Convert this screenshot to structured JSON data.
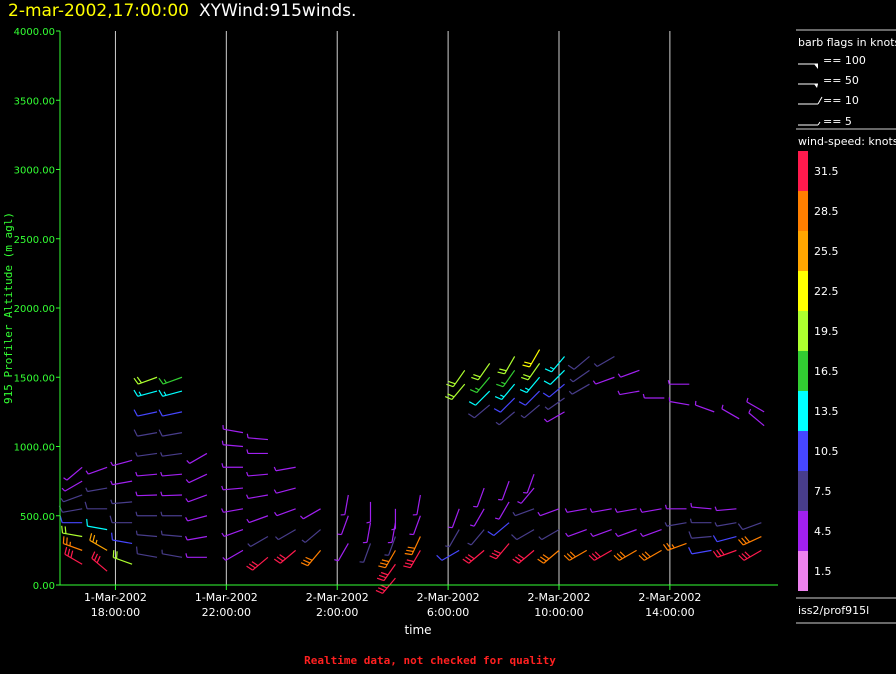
{
  "header": {
    "timestamp": "2-mar-2002,17:00:00",
    "description": "XYWind:915winds."
  },
  "footer": {
    "note": "Realtime data, not checked for quality"
  },
  "legend": {
    "barb_title": "barb flags in knots",
    "barb_entries": [
      "== 100",
      "== 50",
      "== 10",
      "== 5"
    ],
    "speed_title": "wind-speed: knots",
    "station": "iss2/prof915l"
  },
  "colors": {
    "axis": "#33ff33",
    "grid": "#cfcfcf",
    "title_time": "#ffff00",
    "footer": "#ff2020"
  },
  "chart_data": {
    "type": "wind-barb time-height profile",
    "ylabel": "915 Profiler Altitude (m agl)",
    "xlabel": "time",
    "ylim": [
      0,
      4000
    ],
    "yticks": [
      "0.00",
      "500.00",
      "1000.00",
      "1500.00",
      "2000.00",
      "2500.00",
      "3000.00",
      "3500.00",
      "4000.00"
    ],
    "x_range_hours": [
      "1-Mar-2002 16:00",
      "2-Mar-2002 17:00"
    ],
    "xticks": [
      {
        "hour": 18,
        "date": "1-Mar-2002",
        "time": "18:00:00"
      },
      {
        "hour": 22,
        "date": "1-Mar-2002",
        "time": "22:00:00"
      },
      {
        "hour": 26,
        "date": "2-Mar-2002",
        "time": "2:00:00"
      },
      {
        "hour": 30,
        "date": "2-Mar-2002",
        "time": "6:00:00"
      },
      {
        "hour": 34,
        "date": "2-Mar-2002",
        "time": "10:00:00"
      },
      {
        "hour": 38,
        "date": "2-Mar-2002",
        "time": "14:00:00"
      }
    ],
    "colorscale": [
      {
        "label": "1.5",
        "color": "#ee82ee"
      },
      {
        "label": "4.5",
        "color": "#a020f0"
      },
      {
        "label": "7.5",
        "color": "#483d8b"
      },
      {
        "label": "10.5",
        "color": "#4646ff"
      },
      {
        "label": "13.5",
        "color": "#00ffff"
      },
      {
        "label": "16.5",
        "color": "#32cd32"
      },
      {
        "label": "19.5",
        "color": "#adff2f"
      },
      {
        "label": "22.5",
        "color": "#ffff00"
      },
      {
        "label": "25.5",
        "color": "#ffa500"
      },
      {
        "label": "28.5",
        "color": "#ff7f00"
      },
      {
        "label": "31.5",
        "color": "#ff1a4d"
      }
    ],
    "barbs": [
      {
        "t": 16.8,
        "z": [
          150,
          250,
          350,
          450,
          550,
          650,
          750,
          850
        ],
        "spd": [
          31,
          27,
          18,
          10,
          8,
          6,
          5,
          4
        ],
        "dir": [
          300,
          290,
          280,
          270,
          260,
          250,
          240,
          230
        ]
      },
      {
        "t": 17.7,
        "z": [
          100,
          250,
          400,
          550,
          700,
          850
        ],
        "spd": [
          31,
          25,
          12,
          8,
          6,
          4
        ],
        "dir": [
          310,
          300,
          280,
          270,
          260,
          250
        ]
      },
      {
        "t": 18.6,
        "z": [
          150,
          300,
          450,
          600,
          750,
          900
        ],
        "spd": [
          20,
          10,
          8,
          6,
          5,
          3
        ],
        "dir": [
          290,
          280,
          270,
          265,
          260,
          255
        ]
      },
      {
        "t": 19.5,
        "z": [
          200,
          350,
          500,
          650,
          800,
          950,
          1100,
          1250,
          1400,
          1500
        ],
        "spd": [
          8,
          6,
          6,
          5,
          5,
          6,
          8,
          11,
          14,
          19
        ],
        "dir": [
          280,
          275,
          270,
          268,
          265,
          262,
          260,
          258,
          255,
          250
        ]
      },
      {
        "t": 20.4,
        "z": [
          200,
          350,
          500,
          650,
          800,
          950,
          1100,
          1250,
          1400,
          1500
        ],
        "spd": [
          7,
          6,
          6,
          5,
          5,
          6,
          8,
          11,
          14,
          15
        ],
        "dir": [
          280,
          275,
          270,
          268,
          265,
          262,
          260,
          258,
          255,
          250
        ]
      },
      {
        "t": 21.3,
        "z": [
          200,
          350,
          500,
          650,
          800,
          950
        ],
        "spd": [
          5,
          5,
          4,
          4,
          4,
          3
        ],
        "dir": [
          270,
          260,
          255,
          250,
          245,
          240
        ]
      },
      {
        "t": 22.6,
        "z": [
          250,
          400,
          550,
          700,
          850,
          1000,
          1100
        ],
        "spd": [
          5,
          4,
          4,
          4,
          3,
          3,
          3
        ],
        "dir": [
          240,
          250,
          260,
          265,
          270,
          275,
          280
        ]
      },
      {
        "t": 23.5,
        "z": [
          200,
          350,
          500,
          650,
          800,
          950,
          1050
        ],
        "spd": [
          30,
          6,
          5,
          4,
          4,
          3,
          3
        ],
        "dir": [
          230,
          240,
          250,
          260,
          265,
          270,
          275
        ]
      },
      {
        "t": 24.5,
        "z": [
          250,
          400,
          550,
          700,
          850
        ],
        "spd": [
          30,
          6,
          5,
          4,
          3
        ],
        "dir": [
          230,
          240,
          250,
          255,
          260
        ]
      },
      {
        "t": 25.4,
        "z": [
          250,
          400,
          550
        ],
        "spd": [
          29,
          6,
          4
        ],
        "dir": [
          220,
          230,
          240
        ]
      },
      {
        "t": 26.4,
        "z": [
          300,
          500,
          650
        ],
        "spd": [
          5,
          4,
          4
        ],
        "dir": [
          210,
          200,
          190
        ]
      },
      {
        "t": 27.2,
        "z": [
          300,
          450,
          600
        ],
        "spd": [
          6,
          5,
          4
        ],
        "dir": [
          200,
          190,
          180
        ]
      },
      {
        "t": 28.1,
        "z": [
          50,
          150,
          250,
          350,
          450,
          550
        ],
        "spd": [
          31,
          30,
          29,
          6,
          5,
          4
        ],
        "dir": [
          220,
          215,
          210,
          200,
          190,
          180
        ]
      },
      {
        "t": 29.0,
        "z": [
          250,
          350,
          500,
          650
        ],
        "spd": [
          30,
          28,
          5,
          4
        ],
        "dir": [
          210,
          205,
          200,
          190
        ]
      },
      {
        "t": 30.4,
        "z": [
          250,
          400,
          550
        ],
        "spd": [
          10,
          6,
          5
        ],
        "dir": [
          240,
          210,
          200
        ]
      },
      {
        "t": 31.3,
        "z": [
          250,
          400,
          550,
          700
        ],
        "spd": [
          30,
          6,
          5,
          4
        ],
        "dir": [
          230,
          220,
          210,
          200
        ]
      },
      {
        "t": 32.2,
        "z": [
          300,
          450,
          600,
          750
        ],
        "spd": [
          30,
          10,
          5,
          4
        ],
        "dir": [
          220,
          230,
          210,
          200
        ]
      },
      {
        "t": 33.1,
        "z": [
          250,
          400,
          550,
          700,
          800
        ],
        "spd": [
          30,
          8,
          6,
          5,
          4
        ],
        "dir": [
          230,
          240,
          250,
          220,
          200
        ]
      },
      {
        "t": 34.0,
        "z": [
          250,
          400,
          550
        ],
        "spd": [
          28,
          6,
          5
        ],
        "dir": [
          230,
          240,
          250
        ]
      },
      {
        "t": 35.0,
        "z": [
          250,
          400,
          550
        ],
        "spd": [
          29,
          5,
          4
        ],
        "dir": [
          240,
          250,
          260
        ]
      },
      {
        "t": 35.9,
        "z": [
          250,
          400,
          550
        ],
        "spd": [
          30,
          5,
          4
        ],
        "dir": [
          240,
          250,
          260
        ]
      },
      {
        "t": 36.8,
        "z": [
          250,
          400,
          550
        ],
        "spd": [
          28,
          5,
          4
        ],
        "dir": [
          240,
          250,
          260
        ]
      },
      {
        "t": 37.7,
        "z": [
          250,
          400,
          550
        ],
        "spd": [
          29,
          5,
          4
        ],
        "dir": [
          240,
          250,
          260
        ]
      },
      {
        "t": 38.6,
        "z": [
          300,
          450,
          550
        ],
        "spd": [
          27,
          6,
          5
        ],
        "dir": [
          250,
          260,
          270
        ]
      },
      {
        "t": 39.5,
        "z": [
          250,
          350,
          450,
          550
        ],
        "spd": [
          10,
          8,
          6,
          5
        ],
        "dir": [
          260,
          265,
          270,
          275
        ]
      },
      {
        "t": 40.4,
        "z": [
          250,
          350,
          450,
          550
        ],
        "spd": [
          30,
          10,
          7,
          5
        ],
        "dir": [
          250,
          255,
          260,
          265
        ]
      },
      {
        "t": 41.3,
        "z": [
          250,
          350,
          450
        ],
        "spd": [
          30,
          28,
          8
        ],
        "dir": [
          240,
          245,
          250
        ]
      },
      {
        "t": 30.6,
        "z": [
          1450,
          1550
        ],
        "spd": [
          19,
          19
        ],
        "dir": [
          220,
          215
        ]
      },
      {
        "t": 31.5,
        "z": [
          1300,
          1400,
          1500,
          1600
        ],
        "spd": [
          8,
          12,
          16,
          20
        ],
        "dir": [
          230,
          225,
          220,
          215
        ]
      },
      {
        "t": 32.4,
        "z": [
          1250,
          1350,
          1450,
          1550,
          1650
        ],
        "spd": [
          6,
          9,
          13,
          17,
          20
        ],
        "dir": [
          230,
          225,
          220,
          215,
          210
        ]
      },
      {
        "t": 33.3,
        "z": [
          1300,
          1400,
          1500,
          1600,
          1700
        ],
        "spd": [
          7,
          10,
          14,
          18,
          21
        ],
        "dir": [
          230,
          225,
          220,
          215,
          210
        ]
      },
      {
        "t": 34.2,
        "z": [
          1250,
          1350,
          1450,
          1550,
          1650
        ],
        "spd": [
          5,
          7,
          10,
          12,
          14
        ],
        "dir": [
          240,
          235,
          230,
          225,
          220
        ]
      },
      {
        "t": 35.1,
        "z": [
          1450,
          1550,
          1650
        ],
        "spd": [
          6,
          7,
          8
        ],
        "dir": [
          240,
          235,
          230
        ]
      },
      {
        "t": 36.0,
        "z": [
          1500,
          1650
        ],
        "spd": [
          5,
          6
        ],
        "dir": [
          250,
          240
        ]
      },
      {
        "t": 36.9,
        "z": [
          1400,
          1550
        ],
        "spd": [
          5,
          5
        ],
        "dir": [
          260,
          250
        ]
      },
      {
        "t": 37.8,
        "z": [
          1350
        ],
        "spd": [
          5
        ],
        "dir": [
          270
        ]
      },
      {
        "t": 38.7,
        "z": [
          1300,
          1450
        ],
        "spd": [
          4,
          5
        ],
        "dir": [
          280,
          270
        ]
      },
      {
        "t": 39.6,
        "z": [
          1250
        ],
        "spd": [
          4
        ],
        "dir": [
          290
        ]
      },
      {
        "t": 40.5,
        "z": [
          1200
        ],
        "spd": [
          4
        ],
        "dir": [
          300
        ]
      },
      {
        "t": 41.4,
        "z": [
          1150,
          1250
        ],
        "spd": [
          5,
          5
        ],
        "dir": [
          310,
          300
        ]
      }
    ]
  }
}
